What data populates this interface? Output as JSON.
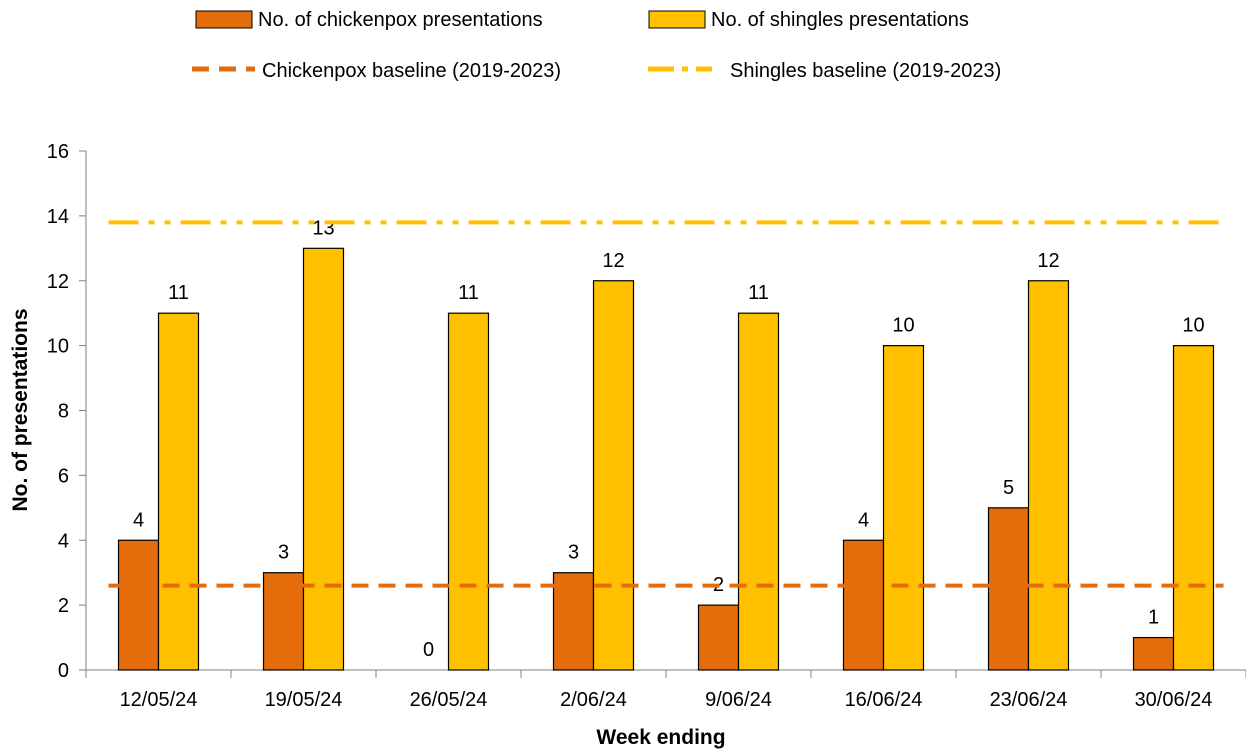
{
  "chart_data": {
    "type": "bar",
    "categories": [
      "12/05/24",
      "19/05/24",
      "26/05/24",
      "2/06/24",
      "9/06/24",
      "16/06/24",
      "23/06/24",
      "30/06/24"
    ],
    "series": [
      {
        "name": "No. of chickenpox presentations",
        "values": [
          4,
          3,
          0,
          3,
          2,
          4,
          5,
          1
        ],
        "color": "#E46C0A"
      },
      {
        "name": "No. of shingles presentations",
        "values": [
          11,
          13,
          11,
          12,
          11,
          10,
          12,
          10
        ],
        "color": "#FFC000"
      }
    ],
    "baselines": [
      {
        "name": "Chickenpox baseline (2019-2023)",
        "value": 2.6,
        "color": "#E46C0A",
        "style": "dashed"
      },
      {
        "name": "Shingles baseline (2019-2023)",
        "value": 13.8,
        "color": "#FFC000",
        "style": "dash-dot-dot"
      }
    ],
    "xlabel": "Week ending",
    "ylabel": "No. of presentations",
    "ylim": [
      0,
      16
    ],
    "yticks": [
      0,
      2,
      4,
      6,
      8,
      10,
      12,
      14,
      16
    ],
    "grid": false,
    "legend_position": "top"
  }
}
